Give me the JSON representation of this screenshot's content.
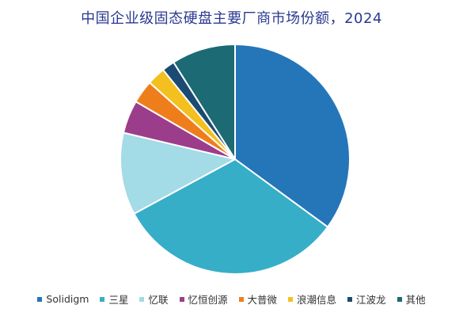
{
  "chart_data": {
    "type": "pie",
    "title": "中国企业级固态硬盘主要厂商市场份额，2024",
    "legend_position": "bottom",
    "start_angle_deg": 0,
    "direction": "clockwise",
    "slices": [
      {
        "label": "Solidigm",
        "value": 35.4,
        "color": "#2476b9"
      },
      {
        "label": "三星",
        "value": 32.4,
        "color": "#36aec8"
      },
      {
        "label": "忆联",
        "value": 11.7,
        "color": "#a3dbe6"
      },
      {
        "label": "忆恒创源",
        "value": 4.7,
        "color": "#9c3d8c"
      },
      {
        "label": "大普微",
        "value": 3.3,
        "color": "#ee7e1c"
      },
      {
        "label": "浪潮信息",
        "value": 2.6,
        "color": "#f4c01f"
      },
      {
        "label": "江波龙",
        "value": 1.8,
        "color": "#1b4b72"
      },
      {
        "label": "其他",
        "value": 9.1,
        "color": "#1c6a74"
      }
    ]
  }
}
